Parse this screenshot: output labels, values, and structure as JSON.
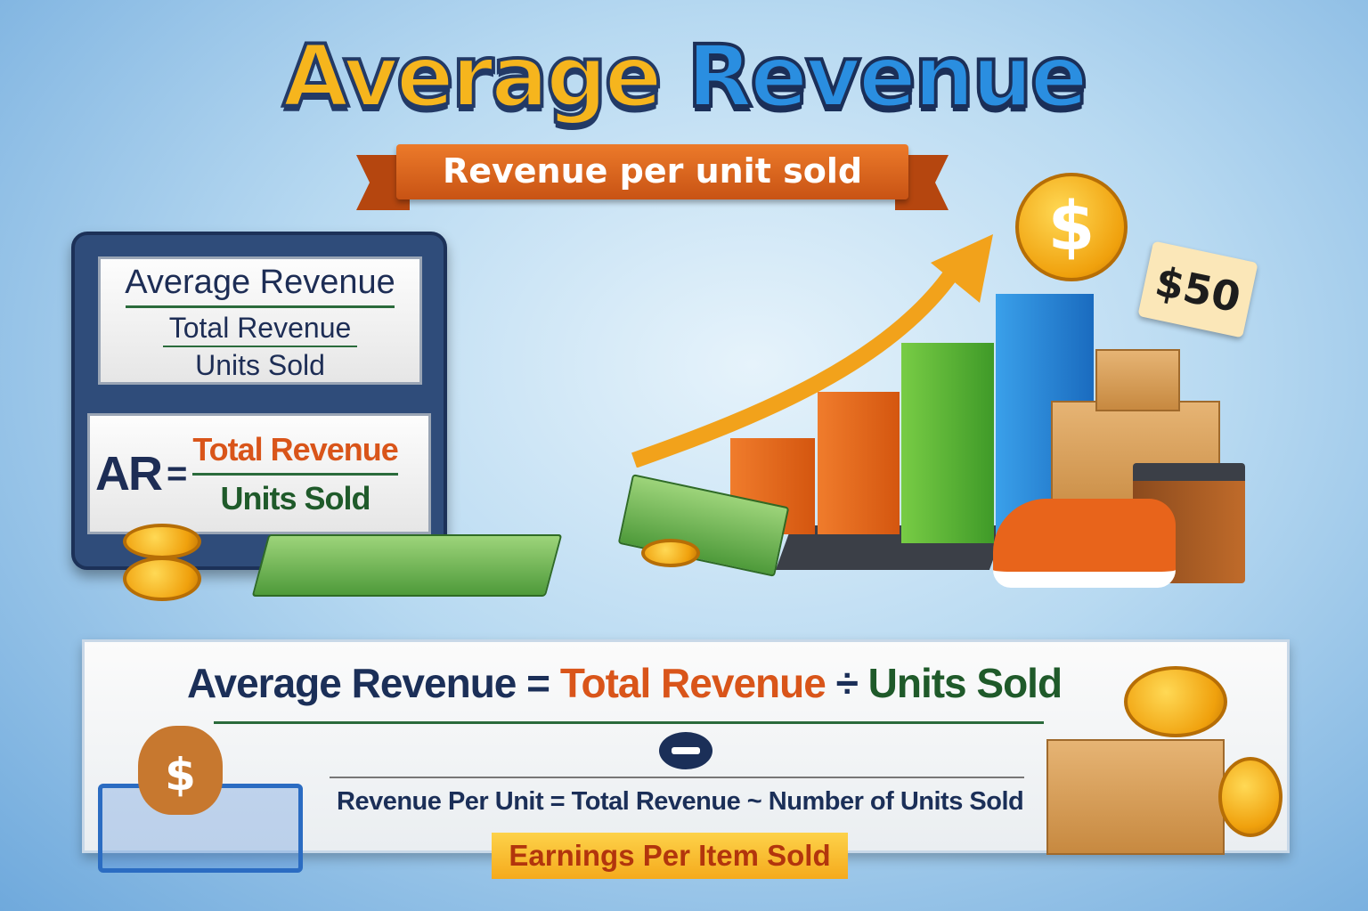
{
  "header": {
    "title_part1": "Average",
    "title_part2": "Revenue",
    "subtitle": "Revenue per unit sold"
  },
  "formula_board": {
    "card1": {
      "heading": "Average Revenue",
      "numerator": "Total Revenue",
      "denominator": "Units Sold"
    },
    "card2": {
      "lhs": "AR",
      "equals": "=",
      "numerator": "Total Revenue",
      "denominator": "Units Sold"
    }
  },
  "illustration": {
    "coin_symbol": "$",
    "price_tag": "$50",
    "colors": {
      "bar1": "#e8671e",
      "bar2": "#e8671e",
      "bar3": "#5bb33a",
      "bar4": "#2b87d6",
      "arrow": "#f2a21b"
    }
  },
  "bottom_panel": {
    "formula": {
      "lhs": "Average Revenue",
      "equals": "=",
      "term1": "Total Revenue",
      "operator": "÷",
      "term2": "Units Sold"
    },
    "detail": "Revenue Per Unit = Total Revenue ~ Number of Units Sold",
    "banner": "Earnings Per Item Sold"
  }
}
